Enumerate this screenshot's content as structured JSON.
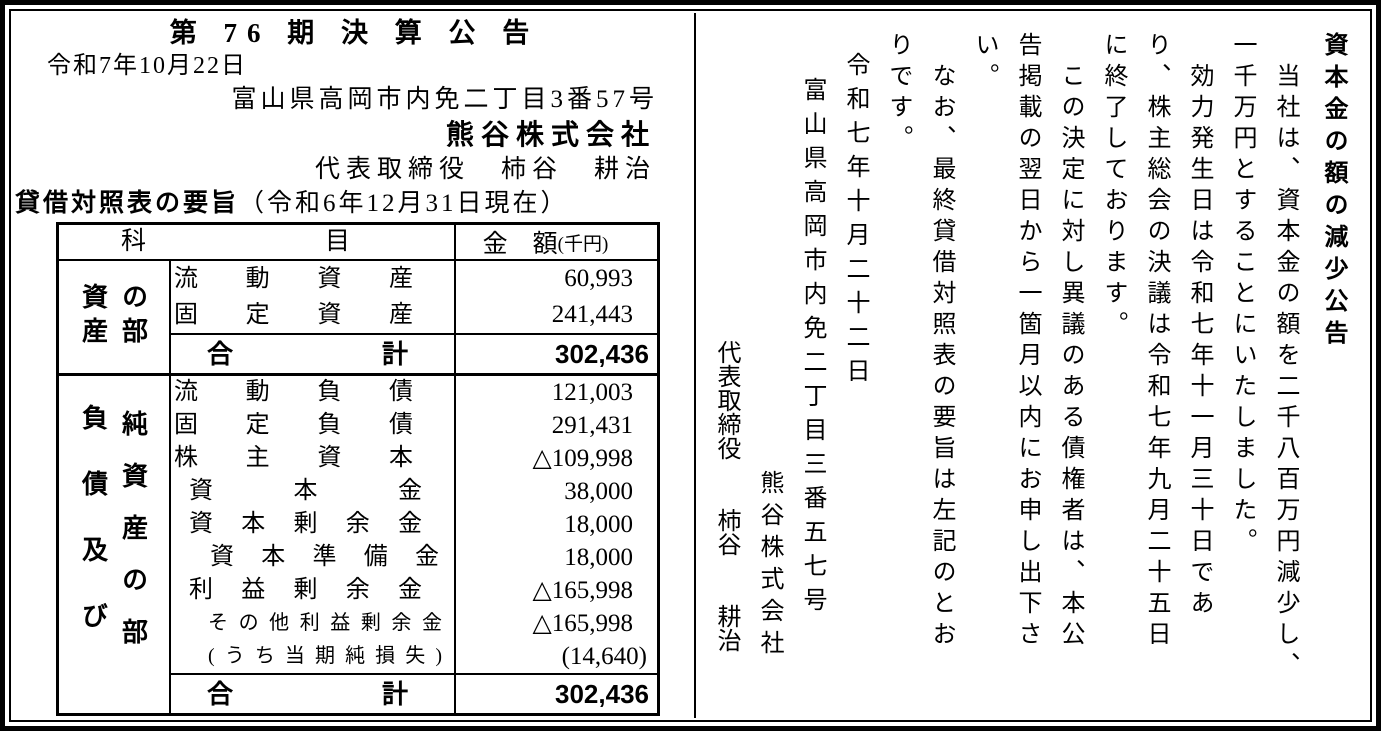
{
  "left": {
    "title": "第 76 期 決 算 公 告",
    "date": "令和7年10月22日",
    "address": "富山県高岡市内免二丁目3番57号",
    "company": "熊谷株式会社",
    "representative": "代表取締役　柿谷　耕治",
    "bs_title": "貸借対照表の要旨",
    "bs_asof": "（令和6年12月31日現在）",
    "table": {
      "header_item": "科目",
      "header_amount": "金　額",
      "header_unit": "(千円)",
      "assets_label_col1": "資産",
      "assets_label_col2": "の部",
      "assets_rows": [
        {
          "label": "流動資産",
          "amount": "60,993",
          "lc": "lvl0",
          "ac": ""
        },
        {
          "label": "固定資産",
          "amount": "241,443",
          "lc": "lvl0",
          "ac": ""
        }
      ],
      "assets_total_label": "合計",
      "assets_total_amount": "302,436",
      "liab_label_col1": "負債及び",
      "liab_label_col2": "純資産の部",
      "liab_rows": [
        {
          "label": "流動負債",
          "amount": "121,003",
          "lc": "lvl0",
          "ac": ""
        },
        {
          "label": "固定負債",
          "amount": "291,431",
          "lc": "lvl0",
          "ac": ""
        },
        {
          "label": "株主資本",
          "amount": "△109,998",
          "lc": "lvl0",
          "ac": ""
        },
        {
          "label": "資本金",
          "amount": "38,000",
          "lc": "lvl1",
          "ac": ""
        },
        {
          "label": "資本剰余金",
          "amount": "18,000",
          "lc": "lvl1",
          "ac": ""
        },
        {
          "label": "資本準備金",
          "amount": "18,000",
          "lc": "lvl2",
          "ac": ""
        },
        {
          "label": "利益剰余金",
          "amount": "△165,998",
          "lc": "lvl1",
          "ac": ""
        },
        {
          "label": "その他利益剰余金",
          "amount": "△165,998",
          "lc": "lvl3 small",
          "ac": ""
        },
        {
          "label": "(うち当期純損失)",
          "amount": "(14,640)",
          "lc": "lvl3 small",
          "ac": "paren"
        }
      ],
      "liab_total_label": "合計",
      "liab_total_amount": "302,436"
    }
  },
  "right": {
    "columns": [
      {
        "t": "資本金の額の減少公告",
        "c": "vtitle"
      },
      {
        "t": "当社は、資本金の額を二千八百万円減少し、",
        "c": "vind"
      },
      {
        "t": "一千万円とすることにいたしました。",
        "c": ""
      },
      {
        "t": "効力発生日は令和七年十一月三十日であ",
        "c": "vind"
      },
      {
        "t": "り、株主総会の決議は令和七年九月二十五日",
        "c": ""
      },
      {
        "t": "に終了しております。",
        "c": ""
      },
      {
        "t": "この決定に対し異議のある債権者は、本公",
        "c": "vind"
      },
      {
        "t": "告掲載の翌日から一箇月以内にお申し出下さ",
        "c": ""
      },
      {
        "t": "い。",
        "c": ""
      },
      {
        "t": "なお、最終貸借対照表の要旨は左記のとお",
        "c": "vind"
      },
      {
        "t": "りです。",
        "c": ""
      },
      {
        "t": "令和七年十月二十二日",
        "c": "vdate"
      },
      {
        "t": "富山県高岡市内免二丁目三番五七号",
        "c": "vaddr"
      },
      {
        "t": "熊谷株式会社",
        "c": "vcompany"
      },
      {
        "t": "代表取締役　　柿谷　　耕治",
        "c": "vrep"
      }
    ]
  }
}
